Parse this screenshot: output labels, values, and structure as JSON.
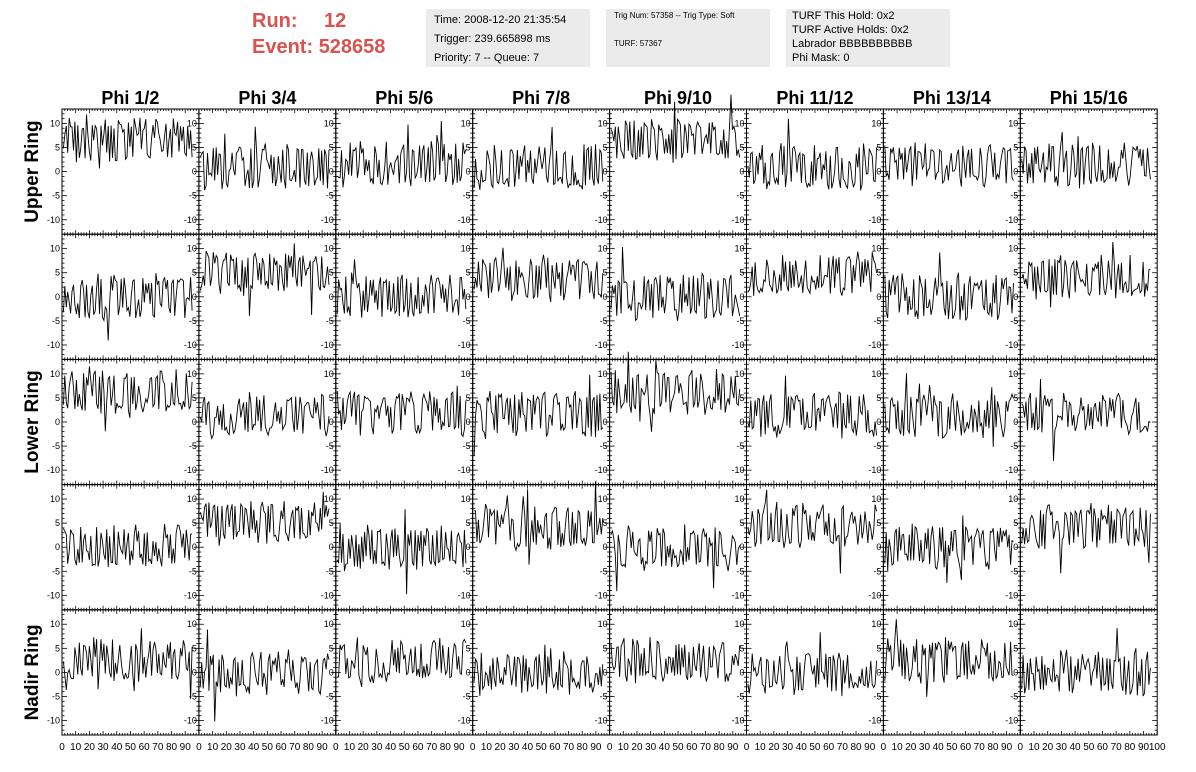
{
  "header": {
    "run_label": "Run:",
    "run_value": "12",
    "event_label": "Event:",
    "event_value": "528658",
    "time": "Time: 2008-12-20 21:35:54",
    "trigger": "Trigger: 239.665898 ms",
    "priority_queue": "Priority: 7 -- Queue: 7",
    "trig_num_type": "Trig Num: 57358 -- Trig Type: Soft",
    "turf": "TURF: 57367",
    "turf_this_hold": "TURF This Hold: 0x2",
    "turf_active_holds": "TURF Active Holds: 0x2",
    "labrador": "Labrador BBBBBBBBBB",
    "phi_mask": "Phi Mask: 0"
  },
  "chart_data": {
    "type": "line",
    "columns": [
      "Phi 1/2",
      "Phi 3/4",
      "Phi 5/6",
      "Phi 7/8",
      "Phi 9/10",
      "Phi 11/12",
      "Phi 13/14",
      "Phi 15/16"
    ],
    "rows": [
      "Upper Ring",
      "Lower Ring",
      "Nadir Ring"
    ],
    "xlim": [
      0,
      100
    ],
    "ylim": [
      -13,
      13
    ],
    "x_ticks": [
      "0",
      "10",
      "20",
      "30",
      "40",
      "50",
      "60",
      "70",
      "80",
      "90",
      "100"
    ],
    "y_ticks": [
      "10",
      "5",
      "0",
      "-5",
      "-10"
    ],
    "panel_baselines": [
      [
        6.5,
        1.0,
        1.5,
        1.0,
        6.5,
        1.0,
        1.5,
        1.5
      ],
      [
        0.0,
        5.0,
        0.0,
        4.0,
        0.0,
        4.5,
        0.0,
        4.0
      ],
      [
        6.5,
        1.5,
        1.5,
        1.5,
        6.5,
        1.5,
        1.5,
        1.5
      ],
      [
        0.0,
        5.0,
        0.0,
        4.0,
        0.0,
        4.5,
        0.0,
        4.0
      ],
      [
        2.5,
        0.0,
        2.5,
        0.0,
        2.5,
        0.0,
        2.5,
        0.0
      ]
    ],
    "noise_amplitude": 4,
    "samples_per_panel": 90,
    "grid": false
  }
}
